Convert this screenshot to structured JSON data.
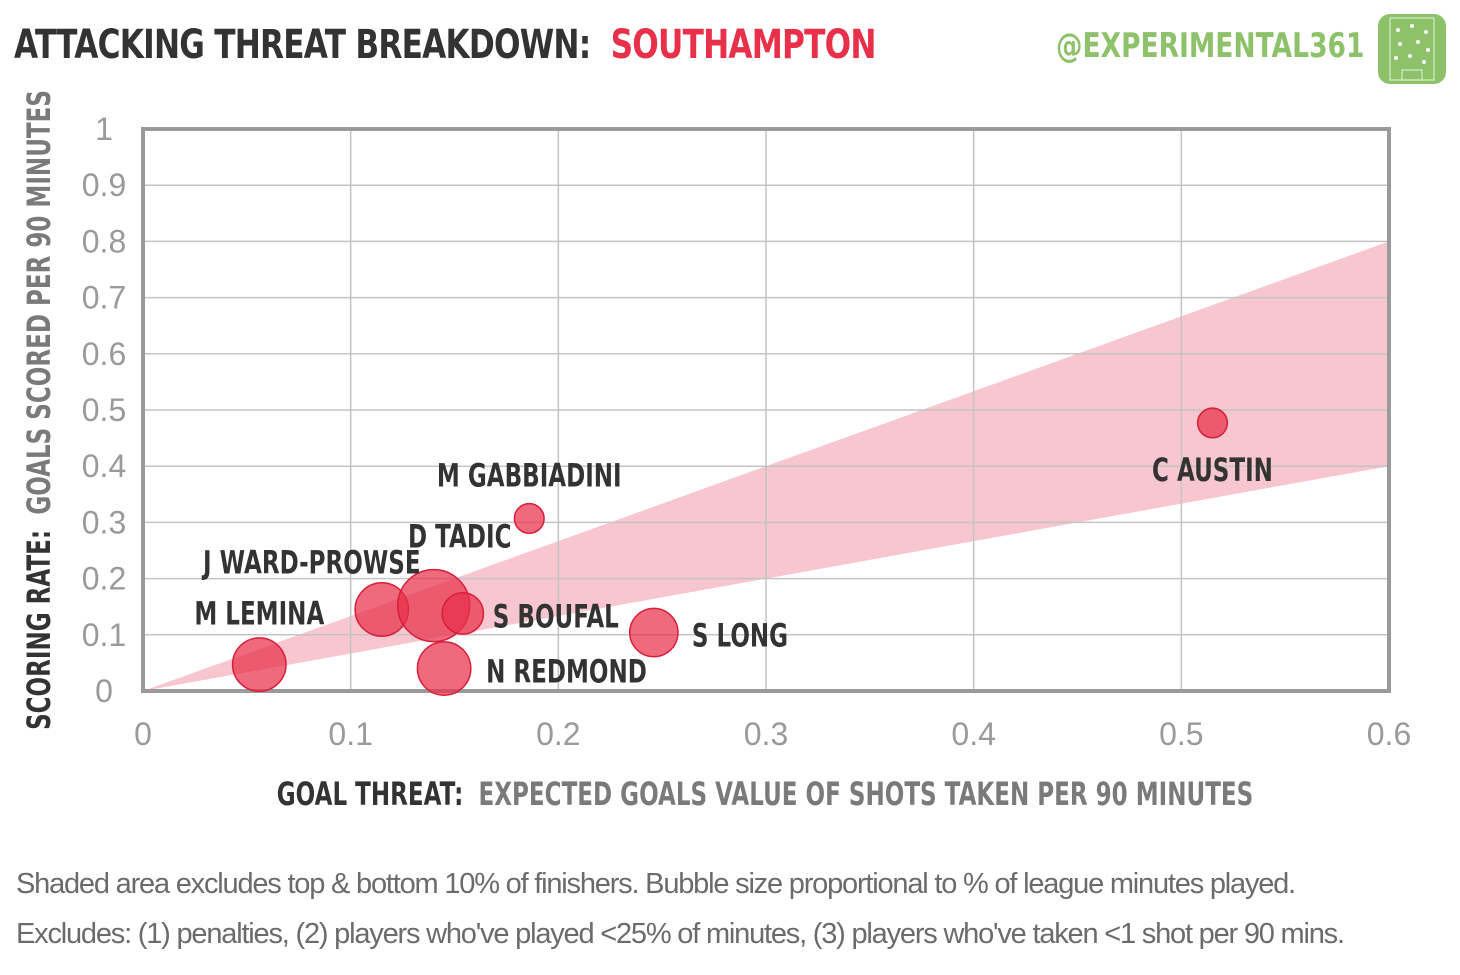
{
  "header": {
    "title_prefix": "ATTACKING THREAT BREAKDOWN:",
    "title_team": "SOUTHAMPTON",
    "handle": "@EXPERIMENTAL361",
    "title_color": "#333333",
    "team_color": "#e8304a",
    "handle_color": "#8dc26a"
  },
  "logo": {
    "icon": "pitch-logo-icon",
    "color": "#8dc26a"
  },
  "chart_data": {
    "type": "scatter",
    "title": "ATTACKING THREAT BREAKDOWN: SOUTHAMPTON",
    "xlabel_bold": "GOAL THREAT:",
    "xlabel_rest": "EXPECTED GOALS VALUE OF SHOTS TAKEN PER 90 MINUTES",
    "ylabel_bold": "SCORING RATE:",
    "ylabel_rest": "GOALS SCORED PER 90 MINUTES",
    "xlim": [
      0,
      0.6
    ],
    "ylim": [
      0,
      1
    ],
    "x_ticks": [
      "0",
      "0.1",
      "0.2",
      "0.3",
      "0.4",
      "0.5",
      "0.6"
    ],
    "y_ticks": [
      "0",
      "0.1",
      "0.2",
      "0.3",
      "0.4",
      "0.5",
      "0.6",
      "0.7",
      "0.8",
      "0.9",
      "1"
    ],
    "grid": true,
    "bubble_color": "#e8304a",
    "band_color": "#f7c6cf",
    "band": {
      "lower": [
        [
          0,
          0
        ],
        [
          0.6,
          0.4
        ]
      ],
      "upper": [
        [
          0,
          0
        ],
        [
          0.6,
          0.8
        ]
      ]
    },
    "points": [
      {
        "name": "M LEMINA",
        "x": 0.056,
        "y": 0.047,
        "size": 0.55
      },
      {
        "name": "J WARD-PROWSE",
        "x": 0.115,
        "y": 0.145,
        "size": 0.55
      },
      {
        "name": "D TADIC",
        "x": 0.14,
        "y": 0.152,
        "size": 1.0
      },
      {
        "name": "S BOUFAL",
        "x": 0.154,
        "y": 0.138,
        "size": 0.33
      },
      {
        "name": "N REDMOND",
        "x": 0.145,
        "y": 0.04,
        "size": 0.55
      },
      {
        "name": "M GABBIADINI",
        "x": 0.186,
        "y": 0.307,
        "size": 0.17
      },
      {
        "name": "S LONG",
        "x": 0.246,
        "y": 0.104,
        "size": 0.45
      },
      {
        "name": "C AUSTIN",
        "x": 0.515,
        "y": 0.477,
        "size": 0.17
      }
    ]
  },
  "notes": {
    "line1": "Shaded area excludes top & bottom 10% of finishers. Bubble size proportional to % of league minutes played.",
    "line2": "Excludes: (1) penalties, (2) players who've played <25% of minutes, (3) players who've taken <1 shot per 90 mins."
  }
}
